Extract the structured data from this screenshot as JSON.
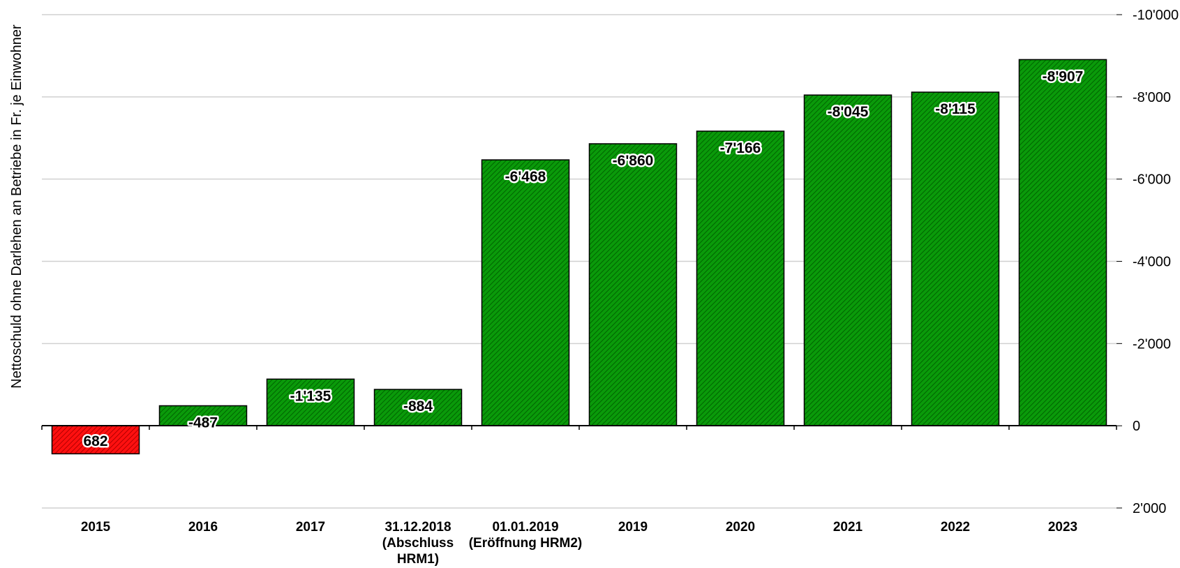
{
  "chart_data": {
    "type": "bar",
    "ylabel": "Nettoschuld ohne Darlehen an Betriebe  in Fr. je Einwohner",
    "categories": [
      [
        "2015"
      ],
      [
        "2016"
      ],
      [
        "2017"
      ],
      [
        "31.12.2018",
        "(Abschluss",
        "HRM1)"
      ],
      [
        "01.01.2019",
        "(Eröffnung HRM2)"
      ],
      [
        "2019"
      ],
      [
        "2020"
      ],
      [
        "2021"
      ],
      [
        "2022"
      ],
      [
        "2023"
      ]
    ],
    "values": [
      682,
      -487,
      -1135,
      -884,
      -6468,
      -6860,
      -7166,
      -8045,
      -8115,
      -8907
    ],
    "data_labels": [
      "682",
      "-487",
      "-1'135",
      "-884",
      "-6'468",
      "-6'860",
      "-7'166",
      "-8'045",
      "-8'115",
      "-8'907"
    ],
    "ylim": [
      2000,
      -10000
    ],
    "yaxis_inverted": true,
    "yaxis_position": "right",
    "yticks": [
      -10000,
      -8000,
      -6000,
      -4000,
      -2000,
      0,
      2000
    ],
    "ytick_labels": [
      "-10'000",
      "-8'000",
      "-6'000",
      "-4'000",
      "-2'000",
      "0",
      "2'000"
    ],
    "grid": true,
    "colors": {
      "negative": "#0a9a0a",
      "positive": "#ff0000",
      "grid": "#d0d0d0",
      "axis": "#000000"
    }
  }
}
